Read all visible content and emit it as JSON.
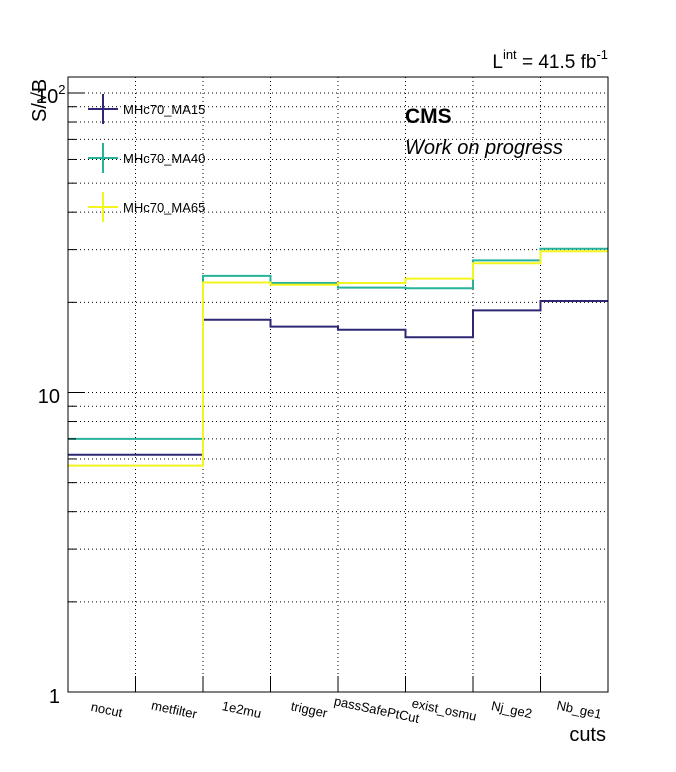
{
  "chart_data": {
    "type": "line",
    "step": true,
    "log_y": true,
    "grid": true,
    "categories": [
      "nocut",
      "metfilter",
      "1e2mu",
      "trigger",
      "passSafePtCut",
      "exist_osmu",
      "Nj_ge2",
      "Nb_ge1"
    ],
    "series": [
      {
        "name": "MHc70_MA15",
        "color": "#2e2775",
        "values": [
          6.2,
          6.2,
          17.5,
          16.6,
          16.2,
          15.3,
          18.8,
          20.2
        ]
      },
      {
        "name": "MHc70_MA40",
        "color": "#27b29b",
        "values": [
          7.0,
          7.0,
          24.5,
          23.2,
          22.4,
          22.3,
          27.6,
          30.2
        ]
      },
      {
        "name": "MHc70_MA65",
        "color": "#f5f51e",
        "values": [
          5.7,
          5.7,
          23.3,
          22.9,
          23.2,
          24.0,
          27.0,
          29.6
        ]
      }
    ],
    "ylim": [
      1,
      120
    ],
    "xlabel": "cuts",
    "ylabel": "S/√B",
    "y_tick_labels": {
      "one": "1",
      "ten": "10",
      "hundred_base": "10",
      "hundred_exp": "2"
    },
    "legend_placement": "top-left",
    "annotations": {
      "cms": "CMS",
      "wip": "Work on progress",
      "lumi_L": "L",
      "lumi_sup": "int",
      "lumi_value": " = 41.5 fb",
      "lumi_unit_exp": "-1"
    }
  }
}
